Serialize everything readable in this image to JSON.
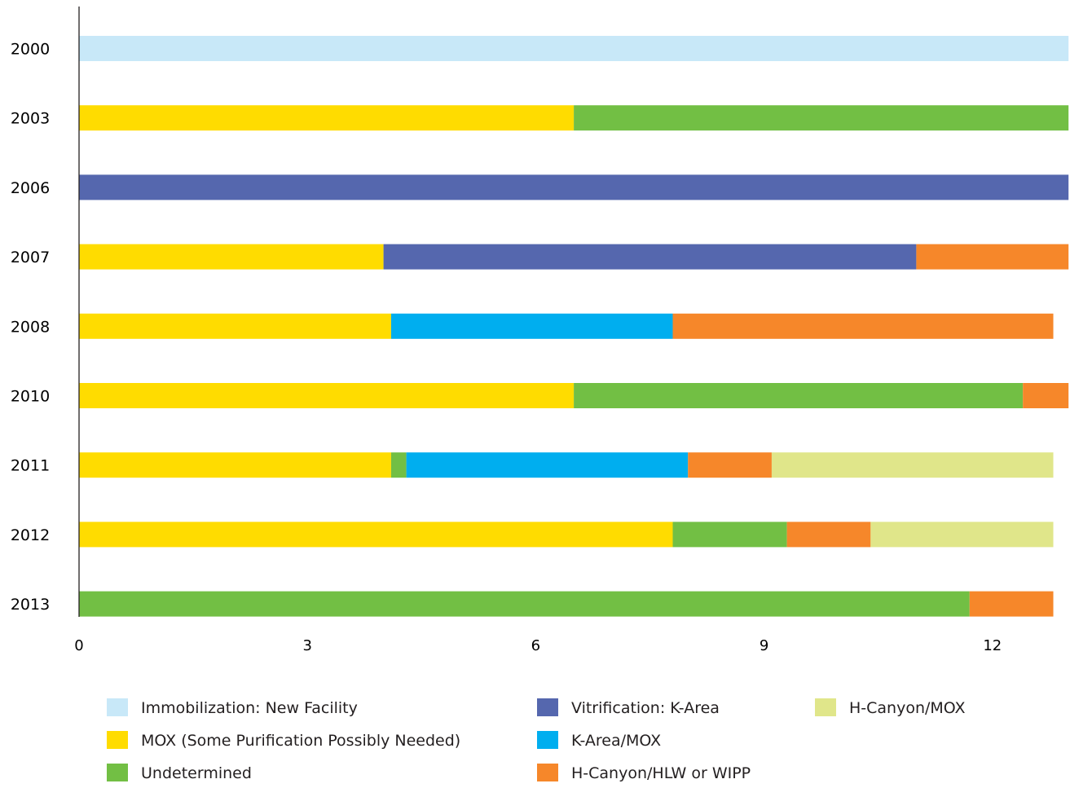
{
  "chart_data": {
    "type": "bar",
    "orientation": "horizontal",
    "stacked": true,
    "title": "",
    "xlabel": "",
    "ylabel": "",
    "xlim": [
      0,
      13
    ],
    "x_ticks": [
      "0",
      "3",
      "6",
      "9",
      "12"
    ],
    "x_tick_values": [
      0,
      3,
      6,
      9,
      12
    ],
    "grid": false,
    "legend_position": "bottom",
    "categories": [
      "2000",
      "2003",
      "2006",
      "2007",
      "2008",
      "2010",
      "2011",
      "2012",
      "2013"
    ],
    "series": [
      {
        "name": "Immobilization: New Facility",
        "color": "#c8e8f8",
        "values": [
          13,
          0,
          0,
          0,
          0,
          0,
          0,
          0,
          0
        ]
      },
      {
        "name": "MOX (Some Purification Possibly Needed)",
        "color": "#ffdc00",
        "values": [
          0,
          6.5,
          0,
          4.0,
          4.1,
          6.5,
          4.1,
          7.8,
          0
        ]
      },
      {
        "name": "Undetermined",
        "color": "#72bf44",
        "values": [
          0,
          6.5,
          0,
          0,
          0,
          5.9,
          0.2,
          1.5,
          11.7
        ]
      },
      {
        "name": "Vitrification: K-Area",
        "color": "#5567ae",
        "values": [
          0,
          0,
          13,
          7.0,
          0,
          0,
          0,
          0,
          0
        ]
      },
      {
        "name": "K-Area/MOX",
        "color": "#00aeef",
        "values": [
          0,
          0,
          0,
          0,
          3.7,
          0,
          3.7,
          0,
          0
        ]
      },
      {
        "name": "H-Canyon/HLW or WIPP",
        "color": "#f6872a",
        "values": [
          0,
          0,
          0,
          2.0,
          5.0,
          0.6,
          1.1,
          1.1,
          1.1
        ]
      },
      {
        "name": "H-Canyon/MOX",
        "color": "#e0e68a",
        "values": [
          0,
          0,
          0,
          0,
          0,
          0,
          3.7,
          2.4,
          0
        ]
      }
    ]
  }
}
